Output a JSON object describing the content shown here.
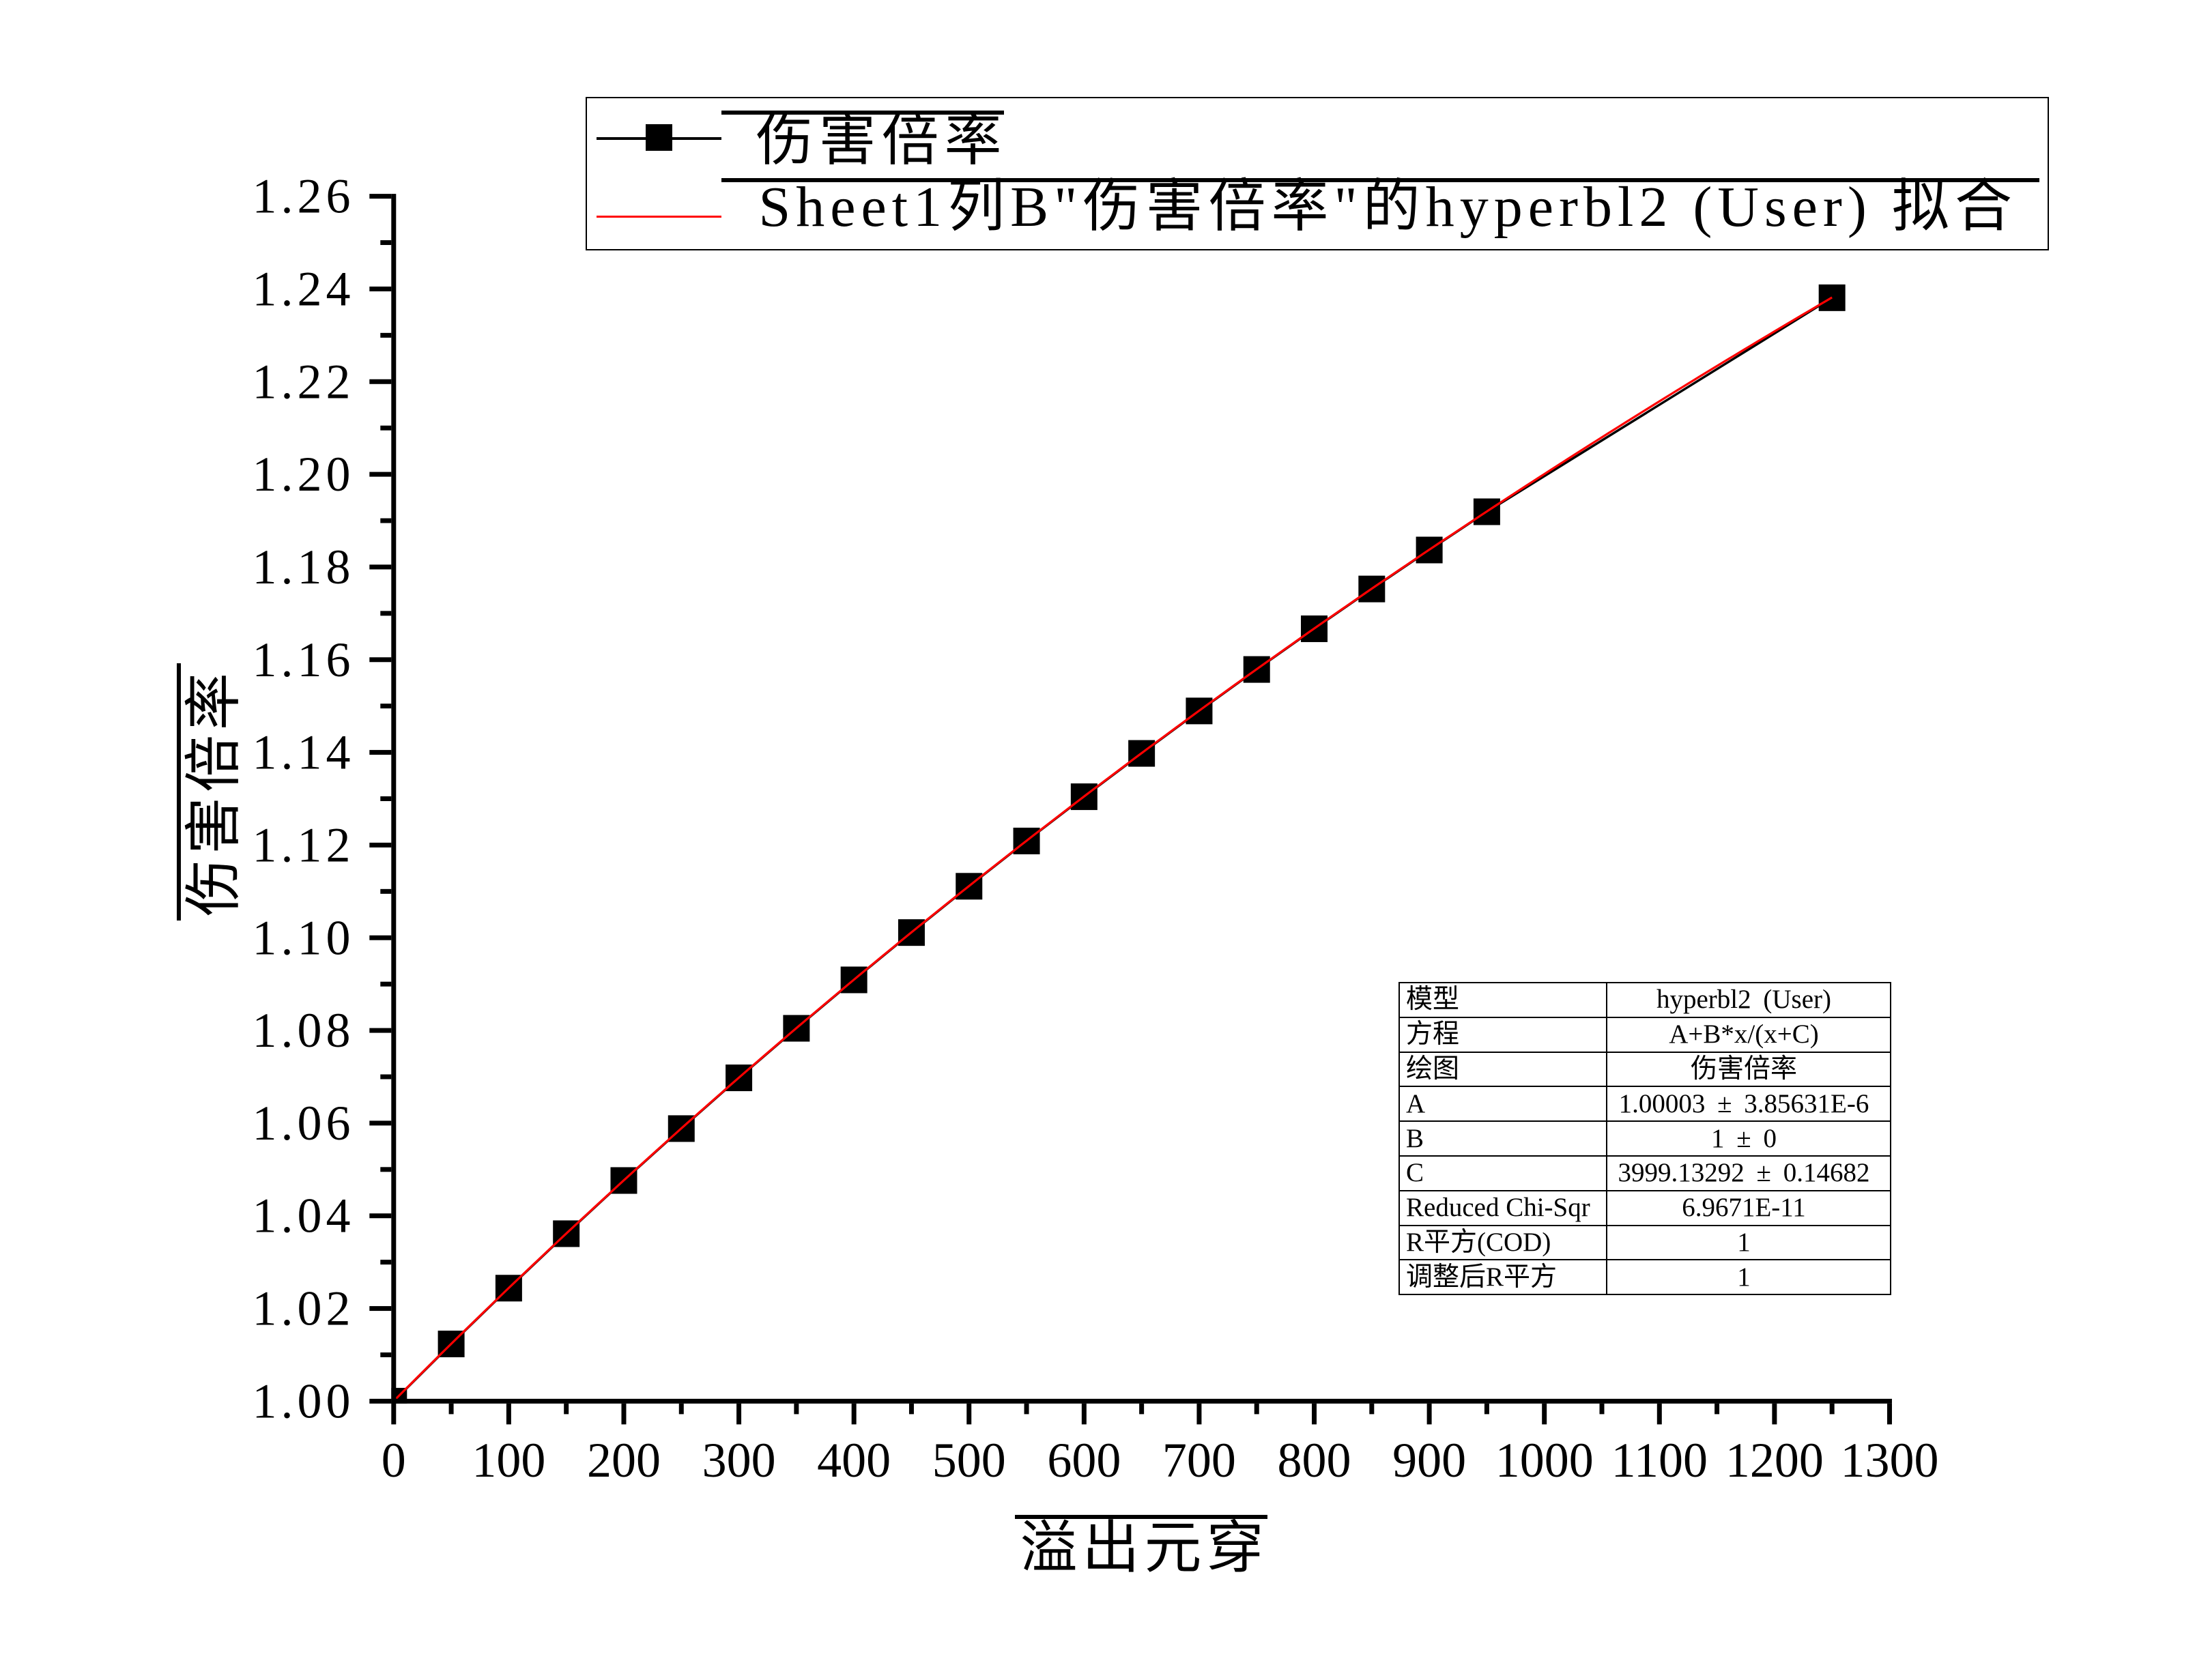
{
  "chart_data": {
    "type": "scatter",
    "title": "",
    "xlabel": "溢出元穿",
    "ylabel": "伤害倍率",
    "xlim": [
      0,
      1300
    ],
    "ylim": [
      1.0,
      1.26
    ],
    "x_major_step": 100,
    "x_minor_step": 50,
    "y_major_step": 0.02,
    "y_minor_step": 0.01,
    "y_tick_decimals": 2,
    "x_tick_labels": [
      "0",
      "100",
      "200",
      "300",
      "400",
      "500",
      "600",
      "700",
      "800",
      "900",
      "1000",
      "1100",
      "1200",
      "1300"
    ],
    "y_tick_labels": [
      "1.00",
      "1.02",
      "1.04",
      "1.06",
      "1.08",
      "1.10",
      "1.12",
      "1.14",
      "1.16",
      "1.18",
      "1.20",
      "1.22",
      "1.24",
      "1.26"
    ],
    "grid": false,
    "legend_position": "top",
    "series": [
      {
        "name": "伤害倍率",
        "marker": "square",
        "color": "#000000",
        "x": [
          0,
          50,
          100,
          150,
          200,
          250,
          300,
          350,
          400,
          450,
          500,
          550,
          600,
          650,
          700,
          750,
          800,
          850,
          900,
          950,
          1250
        ],
        "y": [
          1.0,
          1.01235,
          1.02439,
          1.03614,
          1.04762,
          1.05882,
          1.06977,
          1.08046,
          1.09091,
          1.10112,
          1.11111,
          1.12088,
          1.13043,
          1.13978,
          1.14894,
          1.15789,
          1.16667,
          1.17526,
          1.18367,
          1.19192,
          1.2381
        ]
      }
    ],
    "fit_curve": {
      "name": "Sheet1列B\"伤害倍率\"的hyperbl2 (User) 拟合",
      "model": "hyperbl2 (User)",
      "equation": "A+B*x/(x+C)",
      "A": 1.00003,
      "B": 1,
      "C": 3999.13292,
      "x_range": [
        0,
        1250
      ],
      "color": "#FF0000"
    }
  },
  "legend": {
    "entries": [
      {
        "label": "伤害倍率",
        "sample": "black-line-square-marker",
        "color": "#000000"
      },
      {
        "label": "Sheet1列B\"伤害倍率\"的hyperbl2 (User) 拟合",
        "sample": "red-line",
        "color": "#FF0000"
      }
    ]
  },
  "stats_table": {
    "rows": [
      {
        "label": "模型",
        "value": "hyperbl2 (User)"
      },
      {
        "label": "方程",
        "value": "A+B*x/(x+C)"
      },
      {
        "label": "绘图",
        "value": "伤害倍率"
      },
      {
        "label": "A",
        "value": "1.00003 ± 3.85631E-6"
      },
      {
        "label": "B",
        "value": "1 ± 0"
      },
      {
        "label": "C",
        "value": "3999.13292 ± 0.14682"
      },
      {
        "label": "Reduced Chi-Sqr",
        "value": "6.9671E-11"
      },
      {
        "label": "R平方(COD)",
        "value": "1"
      },
      {
        "label": "调整后R平方",
        "value": "1"
      }
    ]
  },
  "colors": {
    "axis": "#000000",
    "data_series": "#000000",
    "fit_line": "#FF0000",
    "background": "#FFFFFF"
  }
}
